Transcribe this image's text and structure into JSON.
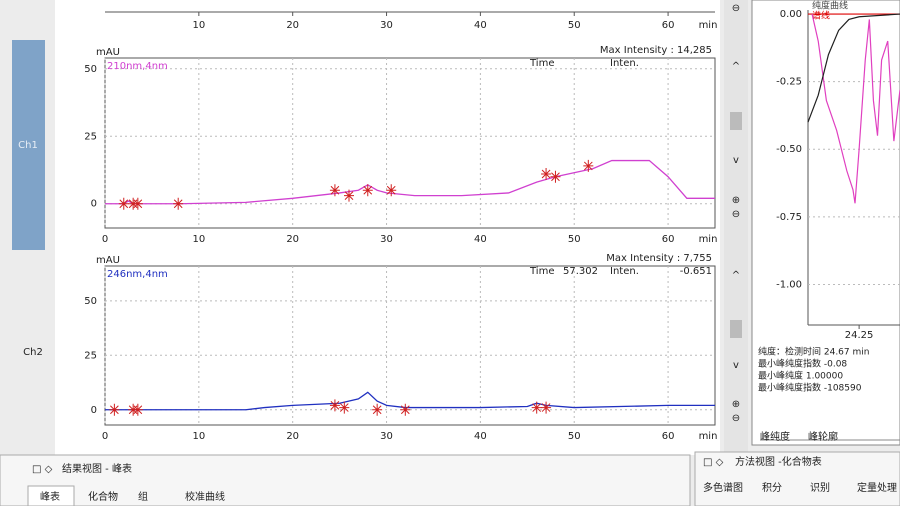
{
  "top_panel": {
    "xlim": [
      0,
      65
    ],
    "xticks": [
      10,
      20,
      30,
      40,
      50,
      60
    ],
    "x_unit": "min"
  },
  "ch1": {
    "side_label": "Ch1",
    "y_unit": "mAU",
    "wavelength": "210nm,4nm",
    "max_intensity": "Max Intensity : 14,285",
    "time_label": "Time",
    "inten_label": "Inten.",
    "xlim": [
      0,
      65
    ],
    "xticks": [
      0,
      10,
      20,
      30,
      40,
      50,
      60
    ],
    "x_unit": "min",
    "ylim": [
      -9,
      54
    ],
    "yticks": [
      0,
      25,
      50
    ],
    "color": "#d040d0",
    "trace": {
      "x": [
        0,
        2,
        2.5,
        3,
        8,
        15,
        20,
        25,
        27,
        28,
        29,
        30,
        33,
        38,
        43,
        46,
        48,
        52,
        54,
        58,
        60,
        62,
        65
      ],
      "y": [
        0,
        0,
        1,
        0,
        0,
        0.5,
        2,
        4,
        5,
        7,
        5,
        4,
        3,
        3,
        4,
        8,
        10,
        13,
        16,
        16,
        10,
        2,
        2
      ]
    },
    "peaks": {
      "x": [
        2,
        3,
        3.5,
        7.8,
        24.5,
        26,
        28,
        30.5,
        47,
        48,
        51.5
      ],
      "y": [
        0,
        0,
        0,
        0,
        5,
        3,
        5,
        5,
        11,
        10,
        14
      ]
    }
  },
  "ch2": {
    "side_label": "Ch2",
    "y_unit": "mAU",
    "wavelength": "246nm,4nm",
    "max_intensity": "Max Intensity : 7,755",
    "time_label": "Time",
    "time_value": "57.302",
    "inten_label": "Inten.",
    "inten_value": "-0.651",
    "xlim": [
      0,
      65
    ],
    "xticks": [
      0,
      10,
      20,
      30,
      40,
      50,
      60
    ],
    "x_unit": "min",
    "ylim": [
      -7,
      66
    ],
    "yticks": [
      0,
      25,
      50
    ],
    "color": "#2030c0",
    "trace": {
      "x": [
        0,
        15,
        17,
        20,
        25,
        27,
        28,
        29,
        30,
        32,
        40,
        45,
        46,
        47,
        50,
        60,
        65
      ],
      "y": [
        0,
        0,
        1,
        2,
        3,
        5,
        8,
        4,
        2,
        1,
        1,
        1.5,
        3,
        2,
        1,
        2,
        2
      ]
    },
    "peaks": {
      "x": [
        1,
        3,
        3.5,
        24.5,
        25.5,
        29,
        32,
        46,
        47
      ],
      "y": [
        0,
        0,
        0,
        2,
        1,
        0,
        0,
        1,
        1
      ]
    }
  },
  "purity": {
    "title": "纯度曲线",
    "legend": "谱线",
    "xlim": [
      24.0,
      24.45
    ],
    "xticks": [
      24.25
    ],
    "ylim": [
      -1.15,
      0.015
    ],
    "yticks": [
      {
        "value": 0,
        "label": "0.00"
      },
      -0.25,
      {
        "value": -0.5,
        "label": "-0.50"
      },
      -0.75,
      {
        "value": -1,
        "label": "-1.00"
      }
    ],
    "curves": [
      {
        "color": "#e040c0",
        "x": [
          24.02,
          24.05,
          24.09,
          24.14,
          24.19,
          24.22,
          24.23,
          24.25,
          24.28,
          24.3,
          24.32,
          24.34,
          24.36,
          24.39,
          24.42,
          24.45
        ],
        "y": [
          0,
          -0.1,
          -0.32,
          -0.43,
          -0.58,
          -0.65,
          -0.7,
          -0.5,
          -0.17,
          -0.02,
          -0.32,
          -0.45,
          -0.17,
          -0.1,
          -0.47,
          -0.28
        ]
      },
      {
        "color": "#202020",
        "x": [
          24.0,
          24.05,
          24.1,
          24.15,
          24.2,
          24.25,
          24.45
        ],
        "y": [
          -0.4,
          -0.3,
          -0.15,
          -0.06,
          -0.02,
          -0.01,
          0
        ]
      }
    ],
    "info": [
      "纯度：检测时间 24.67 min",
      "最小峰纯度指数 -0.08",
      "最小峰纯度 1.00000",
      "最小峰纯度指数 -108590"
    ],
    "tabs": [
      "峰纯度",
      "峰轮廓"
    ]
  },
  "result_view": {
    "title": "结果视图 - 峰表",
    "tabs": [
      "峰表",
      "化合物",
      "组",
      "校准曲线"
    ]
  },
  "method_view": {
    "title": "方法视图 -化合物表",
    "tabs": [
      "多色谱图",
      "积分",
      "识别",
      "定量处理"
    ]
  }
}
